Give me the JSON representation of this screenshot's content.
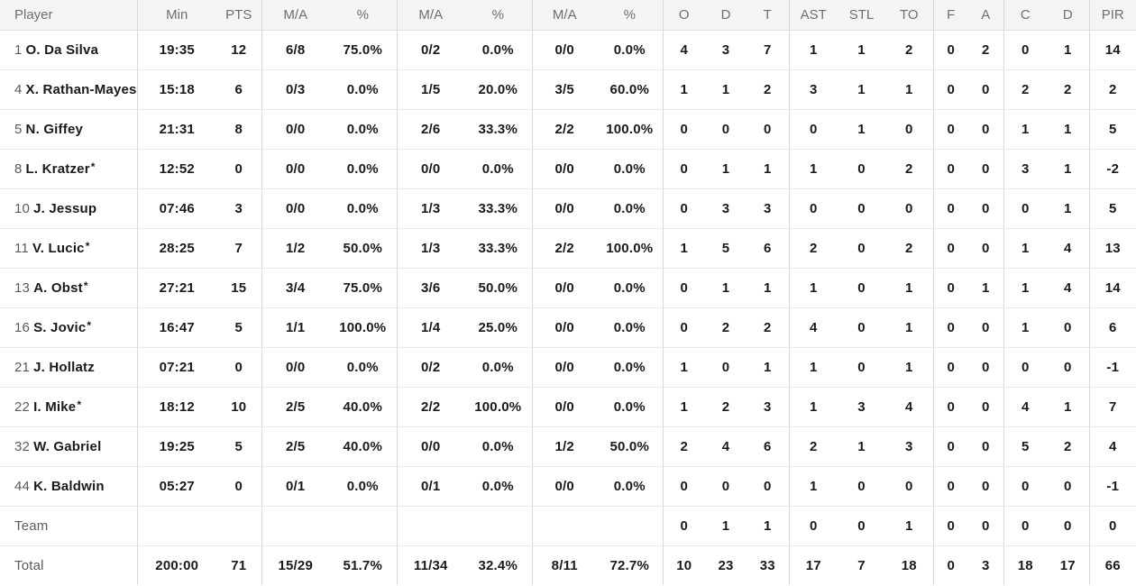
{
  "starter_mark": "*",
  "colors": {
    "header_bg": "#f4f4f4",
    "header_text": "#6f6f6f",
    "vertical_border": "#d8d8d8",
    "row_border": "#e8e8e8",
    "text_primary": "#1a1a1a",
    "text_secondary": "#5a5a5a"
  },
  "table": {
    "headers": [
      "Player",
      "Min",
      "PTS",
      "M/A",
      "%",
      "M/A",
      "%",
      "M/A",
      "%",
      "O",
      "D",
      "T",
      "AST",
      "STL",
      "TO",
      "F",
      "A",
      "C",
      "D",
      "PIR"
    ],
    "rows": [
      {
        "number": "1",
        "name": "O. Da Silva",
        "starter": false,
        "stats": [
          "19:35",
          "12",
          "6/8",
          "75.0%",
          "0/2",
          "0.0%",
          "0/0",
          "0.0%",
          "4",
          "3",
          "7",
          "1",
          "1",
          "2",
          "0",
          "2",
          "0",
          "1",
          "14"
        ]
      },
      {
        "number": "4",
        "name": "X. Rathan-Mayes",
        "starter": false,
        "stats": [
          "15:18",
          "6",
          "0/3",
          "0.0%",
          "1/5",
          "20.0%",
          "3/5",
          "60.0%",
          "1",
          "1",
          "2",
          "3",
          "1",
          "1",
          "0",
          "0",
          "2",
          "2",
          "2"
        ]
      },
      {
        "number": "5",
        "name": "N. Giffey",
        "starter": false,
        "stats": [
          "21:31",
          "8",
          "0/0",
          "0.0%",
          "2/6",
          "33.3%",
          "2/2",
          "100.0%",
          "0",
          "0",
          "0",
          "0",
          "1",
          "0",
          "0",
          "0",
          "1",
          "1",
          "5"
        ]
      },
      {
        "number": "8",
        "name": "L. Kratzer",
        "starter": true,
        "stats": [
          "12:52",
          "0",
          "0/0",
          "0.0%",
          "0/0",
          "0.0%",
          "0/0",
          "0.0%",
          "0",
          "1",
          "1",
          "1",
          "0",
          "2",
          "0",
          "0",
          "3",
          "1",
          "-2"
        ]
      },
      {
        "number": "10",
        "name": "J. Jessup",
        "starter": false,
        "stats": [
          "07:46",
          "3",
          "0/0",
          "0.0%",
          "1/3",
          "33.3%",
          "0/0",
          "0.0%",
          "0",
          "3",
          "3",
          "0",
          "0",
          "0",
          "0",
          "0",
          "0",
          "1",
          "5"
        ]
      },
      {
        "number": "11",
        "name": "V. Lucic",
        "starter": true,
        "stats": [
          "28:25",
          "7",
          "1/2",
          "50.0%",
          "1/3",
          "33.3%",
          "2/2",
          "100.0%",
          "1",
          "5",
          "6",
          "2",
          "0",
          "2",
          "0",
          "0",
          "1",
          "4",
          "13"
        ]
      },
      {
        "number": "13",
        "name": "A. Obst",
        "starter": true,
        "stats": [
          "27:21",
          "15",
          "3/4",
          "75.0%",
          "3/6",
          "50.0%",
          "0/0",
          "0.0%",
          "0",
          "1",
          "1",
          "1",
          "0",
          "1",
          "0",
          "1",
          "1",
          "4",
          "14"
        ]
      },
      {
        "number": "16",
        "name": "S. Jovic",
        "starter": true,
        "stats": [
          "16:47",
          "5",
          "1/1",
          "100.0%",
          "1/4",
          "25.0%",
          "0/0",
          "0.0%",
          "0",
          "2",
          "2",
          "4",
          "0",
          "1",
          "0",
          "0",
          "1",
          "0",
          "6"
        ]
      },
      {
        "number": "21",
        "name": "J. Hollatz",
        "starter": false,
        "stats": [
          "07:21",
          "0",
          "0/0",
          "0.0%",
          "0/2",
          "0.0%",
          "0/0",
          "0.0%",
          "1",
          "0",
          "1",
          "1",
          "0",
          "1",
          "0",
          "0",
          "0",
          "0",
          "-1"
        ]
      },
      {
        "number": "22",
        "name": "I. Mike",
        "starter": true,
        "stats": [
          "18:12",
          "10",
          "2/5",
          "40.0%",
          "2/2",
          "100.0%",
          "0/0",
          "0.0%",
          "1",
          "2",
          "3",
          "1",
          "3",
          "4",
          "0",
          "0",
          "4",
          "1",
          "7"
        ]
      },
      {
        "number": "32",
        "name": "W. Gabriel",
        "starter": false,
        "stats": [
          "19:25",
          "5",
          "2/5",
          "40.0%",
          "0/0",
          "0.0%",
          "1/2",
          "50.0%",
          "2",
          "4",
          "6",
          "2",
          "1",
          "3",
          "0",
          "0",
          "5",
          "2",
          "4"
        ]
      },
      {
        "number": "44",
        "name": "K. Baldwin",
        "starter": false,
        "stats": [
          "05:27",
          "0",
          "0/1",
          "0.0%",
          "0/1",
          "0.0%",
          "0/0",
          "0.0%",
          "0",
          "0",
          "0",
          "1",
          "0",
          "0",
          "0",
          "0",
          "0",
          "0",
          "-1"
        ]
      }
    ],
    "team_row": {
      "label": "Team",
      "stats": [
        "",
        "",
        "",
        "",
        "",
        "",
        "",
        "",
        "0",
        "1",
        "1",
        "0",
        "0",
        "1",
        "0",
        "0",
        "0",
        "0",
        "0"
      ]
    },
    "total_row": {
      "label": "Total",
      "stats": [
        "200:00",
        "71",
        "15/29",
        "51.7%",
        "11/34",
        "32.4%",
        "8/11",
        "72.7%",
        "10",
        "23",
        "33",
        "17",
        "7",
        "18",
        "0",
        "3",
        "18",
        "17",
        "66"
      ]
    }
  }
}
